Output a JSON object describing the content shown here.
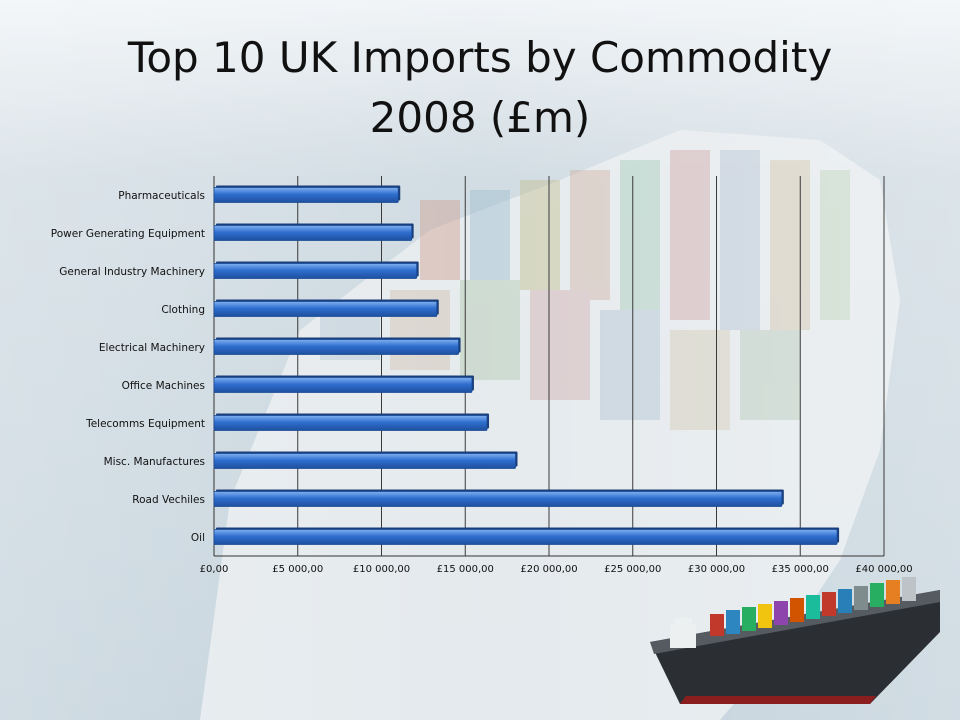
{
  "slide": {
    "title_line1": "Top 10 UK Imports by Commodity",
    "title_line2": "2008 (£m)",
    "background_image": "container-ship-photo",
    "thumbnail_image": "container-ship-icon"
  },
  "chart_data": {
    "type": "bar",
    "orientation": "horizontal",
    "title": "Top 10 UK Imports by Commodity 2008 (£m)",
    "xlabel": "",
    "ylabel": "",
    "categories": [
      "Pharmaceuticals",
      "Power Generating Equipment",
      "General Industry Machinery",
      "Clothing",
      "Electrical Machinery",
      "Office Machines",
      "Telecomms Equipment",
      "Misc. Manufactures",
      "Road Vechiles",
      "Oil"
    ],
    "values": [
      11000,
      11800,
      12100,
      13300,
      14600,
      15400,
      16300,
      18000,
      33900,
      37200
    ],
    "xlim": [
      0,
      40000
    ],
    "xticks": [
      0,
      5000,
      10000,
      15000,
      20000,
      25000,
      30000,
      35000,
      40000
    ],
    "xtick_labels": [
      "£0,00",
      "£5 000,00",
      "£10 000,00",
      "£15 000,00",
      "£20 000,00",
      "£25 000,00",
      "£30 000,00",
      "£35 000,00",
      "£40 000,00"
    ],
    "grid": true,
    "legend": false,
    "bar_color": "#2f6fd0"
  }
}
